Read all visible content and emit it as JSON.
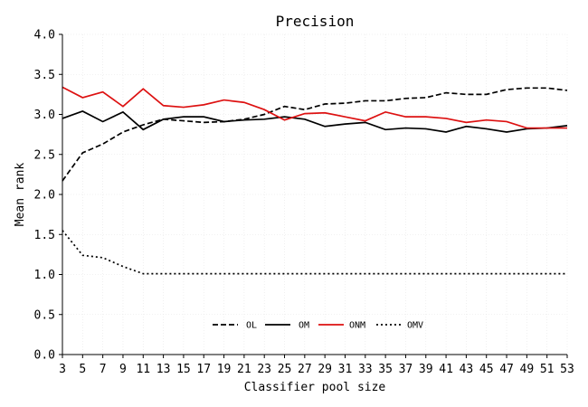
{
  "chart_data": {
    "type": "line",
    "title": "Precision",
    "xlabel": "Classifier pool size",
    "ylabel": "Mean rank",
    "xlim": [
      3,
      53
    ],
    "ylim": [
      0.0,
      4.0
    ],
    "x_ticks": [
      "3",
      "5",
      "7",
      "9",
      "11",
      "13",
      "15",
      "17",
      "19",
      "21",
      "23",
      "25",
      "27",
      "29",
      "31",
      "33",
      "35",
      "37",
      "39",
      "41",
      "43",
      "45",
      "47",
      "49",
      "51",
      "53"
    ],
    "y_ticks": [
      "0.0",
      "0.5",
      "1.0",
      "1.5",
      "2.0",
      "2.5",
      "3.0",
      "3.5",
      "4.0"
    ],
    "grid": true,
    "legend_position": "bottom-center",
    "x": [
      3,
      5,
      7,
      9,
      11,
      13,
      15,
      17,
      19,
      21,
      23,
      25,
      27,
      29,
      31,
      33,
      35,
      37,
      39,
      41,
      43,
      45,
      47,
      49,
      51,
      53
    ],
    "series": [
      {
        "name": "OL",
        "color": "#000000",
        "style": "dashed",
        "values": [
          2.17,
          2.52,
          2.63,
          2.78,
          2.87,
          2.94,
          2.92,
          2.9,
          2.91,
          2.94,
          3.0,
          3.1,
          3.06,
          3.13,
          3.14,
          3.17,
          3.17,
          3.2,
          3.21,
          3.27,
          3.25,
          3.25,
          3.31,
          3.33,
          3.33,
          3.3
        ]
      },
      {
        "name": "OM",
        "color": "#000000",
        "style": "solid",
        "values": [
          2.95,
          3.04,
          2.91,
          3.03,
          2.81,
          2.94,
          2.97,
          2.97,
          2.91,
          2.93,
          2.94,
          2.97,
          2.94,
          2.85,
          2.88,
          2.9,
          2.81,
          2.83,
          2.82,
          2.78,
          2.85,
          2.82,
          2.78,
          2.82,
          2.83,
          2.86
        ]
      },
      {
        "name": "ONM",
        "color": "#dd1111",
        "style": "solid",
        "values": [
          3.34,
          3.21,
          3.28,
          3.1,
          3.32,
          3.11,
          3.09,
          3.12,
          3.18,
          3.15,
          3.06,
          2.93,
          3.01,
          3.02,
          2.97,
          2.92,
          3.03,
          2.97,
          2.97,
          2.95,
          2.9,
          2.93,
          2.91,
          2.83,
          2.83,
          2.83
        ]
      },
      {
        "name": "OMV",
        "color": "#000000",
        "style": "dotted",
        "values": [
          1.55,
          1.24,
          1.21,
          1.1,
          1.01,
          1.01,
          1.01,
          1.01,
          1.01,
          1.01,
          1.01,
          1.01,
          1.01,
          1.01,
          1.01,
          1.01,
          1.01,
          1.01,
          1.01,
          1.01,
          1.01,
          1.01,
          1.01,
          1.01,
          1.01,
          1.01
        ]
      }
    ]
  }
}
